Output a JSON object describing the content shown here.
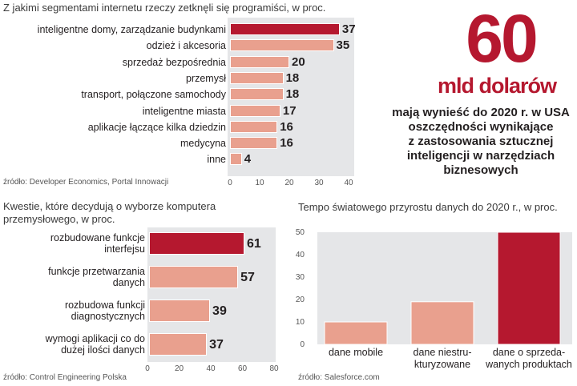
{
  "chart_data": [
    {
      "type": "bar",
      "orientation": "horizontal",
      "title": "Z jakimi segmentami internetu rzeczy zetknęli się programiści, w proc.",
      "categories": [
        "inteligentne domy, zarządzanie budynkami",
        "odzież i akcesoria",
        "sprzedaż bezpośrednia",
        "przemysł",
        "transport, połączone samochody",
        "inteligentne miasta",
        "aplikacje łączące kilka dziedzin",
        "medycyna",
        "inne"
      ],
      "values": [
        37,
        35,
        20,
        18,
        18,
        17,
        16,
        16,
        4
      ],
      "value_labels": [
        "37",
        "35",
        "20",
        "18",
        "18",
        "17",
        "16",
        "16",
        "4"
      ],
      "highlight_index": 0,
      "xlim": [
        0,
        40
      ],
      "xticks": [
        "0",
        "10",
        "20",
        "30",
        "40"
      ],
      "source": "źródło: Developer Economics, Portal Innowacji"
    },
    {
      "type": "bar",
      "orientation": "horizontal",
      "title_lines": [
        "Kwestie, które decydują o wyborze komputera",
        "przemysłowego, w proc."
      ],
      "categories": [
        [
          "rozbudowane funkcje",
          "interfejsu"
        ],
        [
          "funkcje przetwarzania",
          "danych"
        ],
        [
          "rozbudowa funkcji",
          "diagnostycznych"
        ],
        [
          "wymogi aplikacji co do",
          "dużej ilości danych"
        ]
      ],
      "values": [
        61,
        57,
        39,
        37
      ],
      "value_labels": [
        "61",
        "57",
        "39",
        "37"
      ],
      "highlight_index": 0,
      "xlim": [
        0,
        80
      ],
      "xticks": [
        "0",
        "20",
        "40",
        "60",
        "80"
      ],
      "source": "źródło: Control Engineering Polska"
    },
    {
      "type": "bar",
      "orientation": "vertical",
      "title": "Tempo światowego przyrostu danych do 2020 r., w proc.",
      "categories": [
        [
          "dane mobile"
        ],
        [
          "dane niestru-",
          "kturyzowane"
        ],
        [
          "dane o sprzeda-",
          "wanych produktach"
        ]
      ],
      "values": [
        10,
        19,
        50
      ],
      "highlight_index": 2,
      "ylim": [
        0,
        50
      ],
      "yticks": [
        "0",
        "10",
        "20",
        "30",
        "40",
        "50"
      ],
      "source": "źródło: Salesforce.com"
    }
  ],
  "callout": {
    "number": "60",
    "unit": "mld dolarów",
    "lines": [
      "mają wynieść do 2020 r. w USA",
      "oszczędności wynikające",
      "z zastosowania sztucznej",
      "inteligencji w narzędziach",
      "biznesowych"
    ]
  },
  "colors": {
    "highlight": "#b5182f",
    "bar": "#e9a08e",
    "panel": "#e5e6e8",
    "text": "#231f20"
  }
}
